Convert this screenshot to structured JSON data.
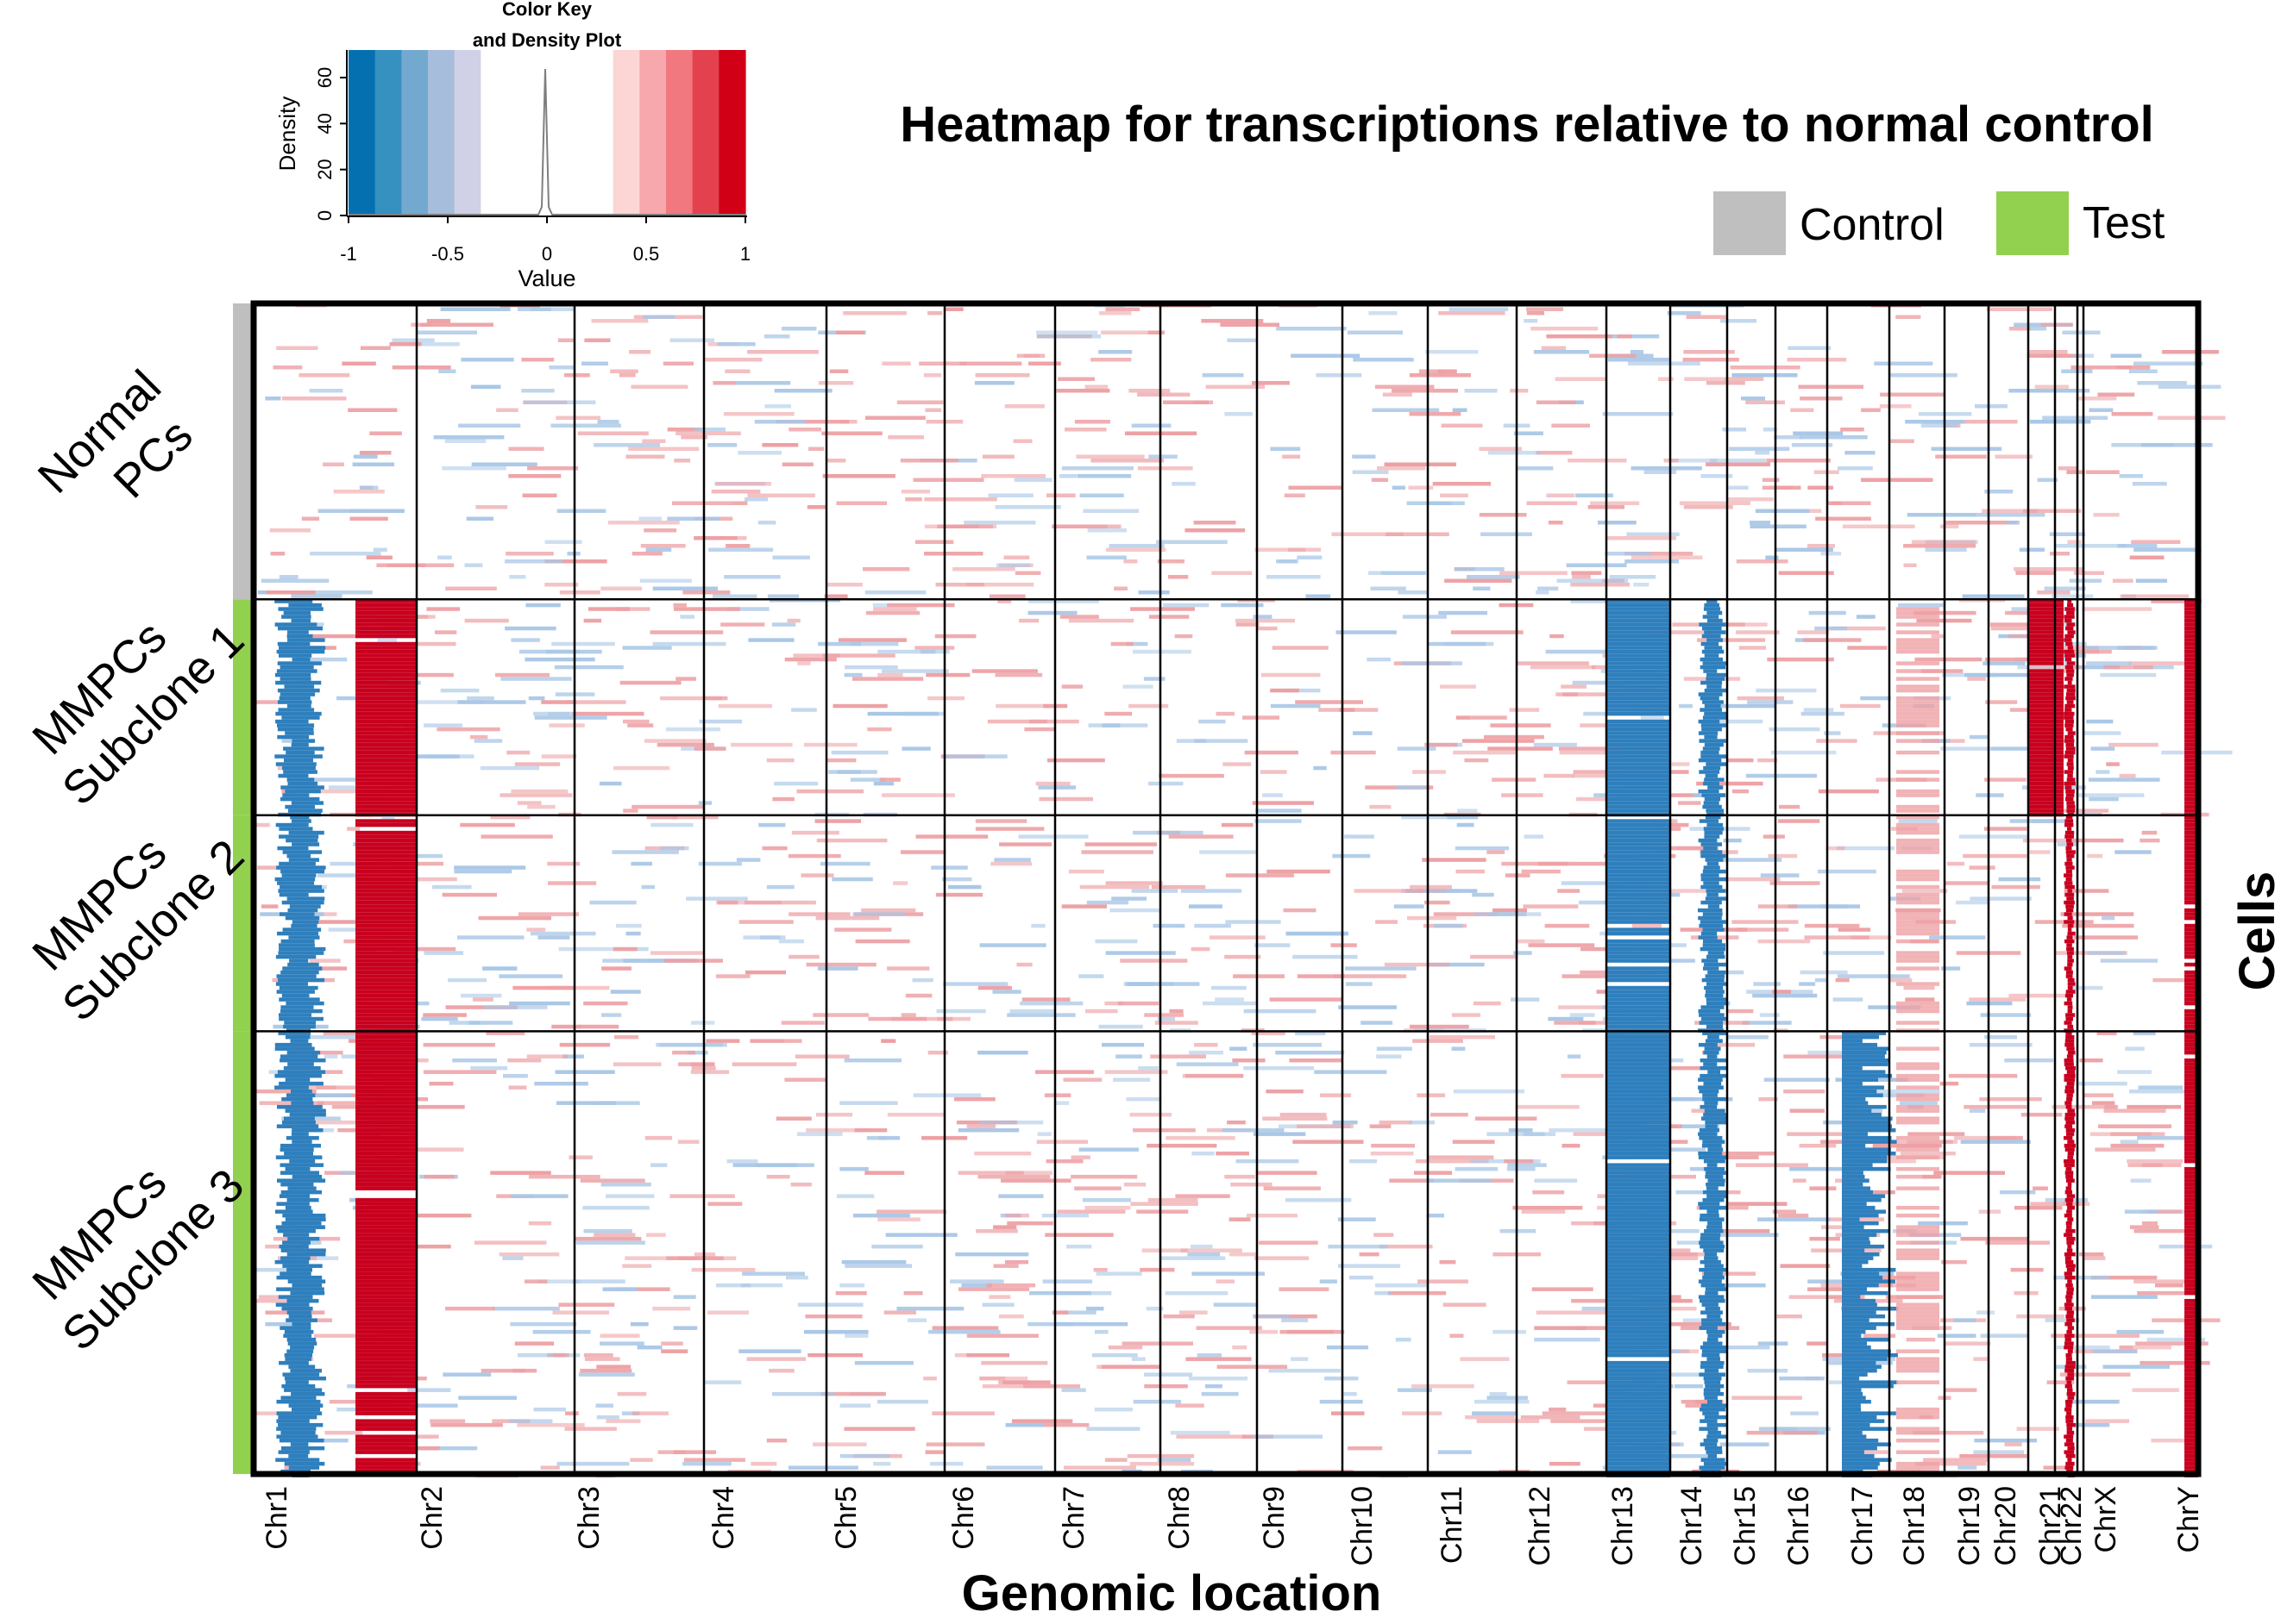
{
  "title": "Heatmap for transcriptions relative to normal control",
  "legend": {
    "items": [
      {
        "label": "Control",
        "color": "#bfbfbf"
      },
      {
        "label": "Test",
        "color": "#92d050"
      }
    ]
  },
  "color_key": {
    "title_line1": "Color Key",
    "title_line2": "and Density Plot",
    "ylabel": "Density",
    "xlabel": "Value",
    "xticks": [
      "-1",
      "-0.5",
      "0",
      "0.5",
      "1"
    ],
    "yticks": [
      "0",
      "20",
      "40",
      "60"
    ],
    "colors": [
      "#0570b0",
      "#3690c0",
      "#74a9cf",
      "#a6bddb",
      "#d0d1e6",
      "#ffffff",
      "#ffffff",
      "#ffffff",
      "#ffffff",
      "#ffffff",
      "#fcd5d5",
      "#f7a8ad",
      "#f1787f",
      "#e3414e",
      "#d10016"
    ]
  },
  "chart_data": {
    "type": "heatmap",
    "title": "Heatmap for transcriptions relative to normal control",
    "xlabel": "Genomic location",
    "ylabel": "Cells",
    "value_range": [
      -1,
      1
    ],
    "colors": {
      "negative": "#2e7fbd",
      "positive": "#c8001e",
      "light_negative": "#a9c7e6",
      "light_positive": "#eda0a4"
    },
    "chromosomes": [
      "Chr1",
      "Chr2",
      "Chr3",
      "Chr4",
      "Chr5",
      "Chr6",
      "Chr7",
      "Chr8",
      "Chr9",
      "Chr10",
      "Chr11",
      "Chr12",
      "Chr13",
      "Chr14",
      "Chr15",
      "Chr16",
      "Chr17",
      "Chr18",
      "Chr19",
      "Chr20",
      "Chr21",
      "Chr22",
      "ChrX",
      "ChrY"
    ],
    "groups": [
      {
        "label_line1": "Normal",
        "label_line2": "PCs",
        "annotation": "Control",
        "relative_rows": 1.37
      },
      {
        "label_line1": "MMPCs",
        "label_line2": "Subclone 1",
        "annotation": "Test",
        "relative_rows": 1.0
      },
      {
        "label_line1": "MMPCs",
        "label_line2": "Subclone 2",
        "annotation": "Test",
        "relative_rows": 1.0
      },
      {
        "label_line1": "MMPCs",
        "label_line2": "Subclone 3",
        "annotation": "Test",
        "relative_rows": 2.05
      }
    ],
    "notable_blocks": [
      {
        "region": "Chr1 (q arm)",
        "groups": [
          "MMPCs Subclone 1",
          "MMPCs Subclone 2",
          "MMPCs Subclone 3"
        ],
        "direction": "loss"
      },
      {
        "region": "Chr1 (end) / Chr2 start",
        "groups": [
          "MMPCs Subclone 1",
          "MMPCs Subclone 2",
          "MMPCs Subclone 3"
        ],
        "direction": "gain"
      },
      {
        "region": "Chr13",
        "groups": [
          "MMPCs Subclone 1",
          "MMPCs Subclone 2",
          "MMPCs Subclone 3"
        ],
        "direction": "loss"
      },
      {
        "region": "Chr14",
        "groups": [
          "MMPCs Subclone 1",
          "MMPCs Subclone 2",
          "MMPCs Subclone 3"
        ],
        "direction": "loss"
      },
      {
        "region": "Chr17",
        "groups": [
          "MMPCs Subclone 3"
        ],
        "direction": "loss"
      },
      {
        "region": "Chr21",
        "groups": [
          "MMPCs Subclone 1"
        ],
        "direction": "gain"
      },
      {
        "region": "ChrY",
        "groups": [
          "MMPCs Subclone 1",
          "MMPCs Subclone 2",
          "MMPCs Subclone 3"
        ],
        "direction": "gain"
      }
    ]
  }
}
